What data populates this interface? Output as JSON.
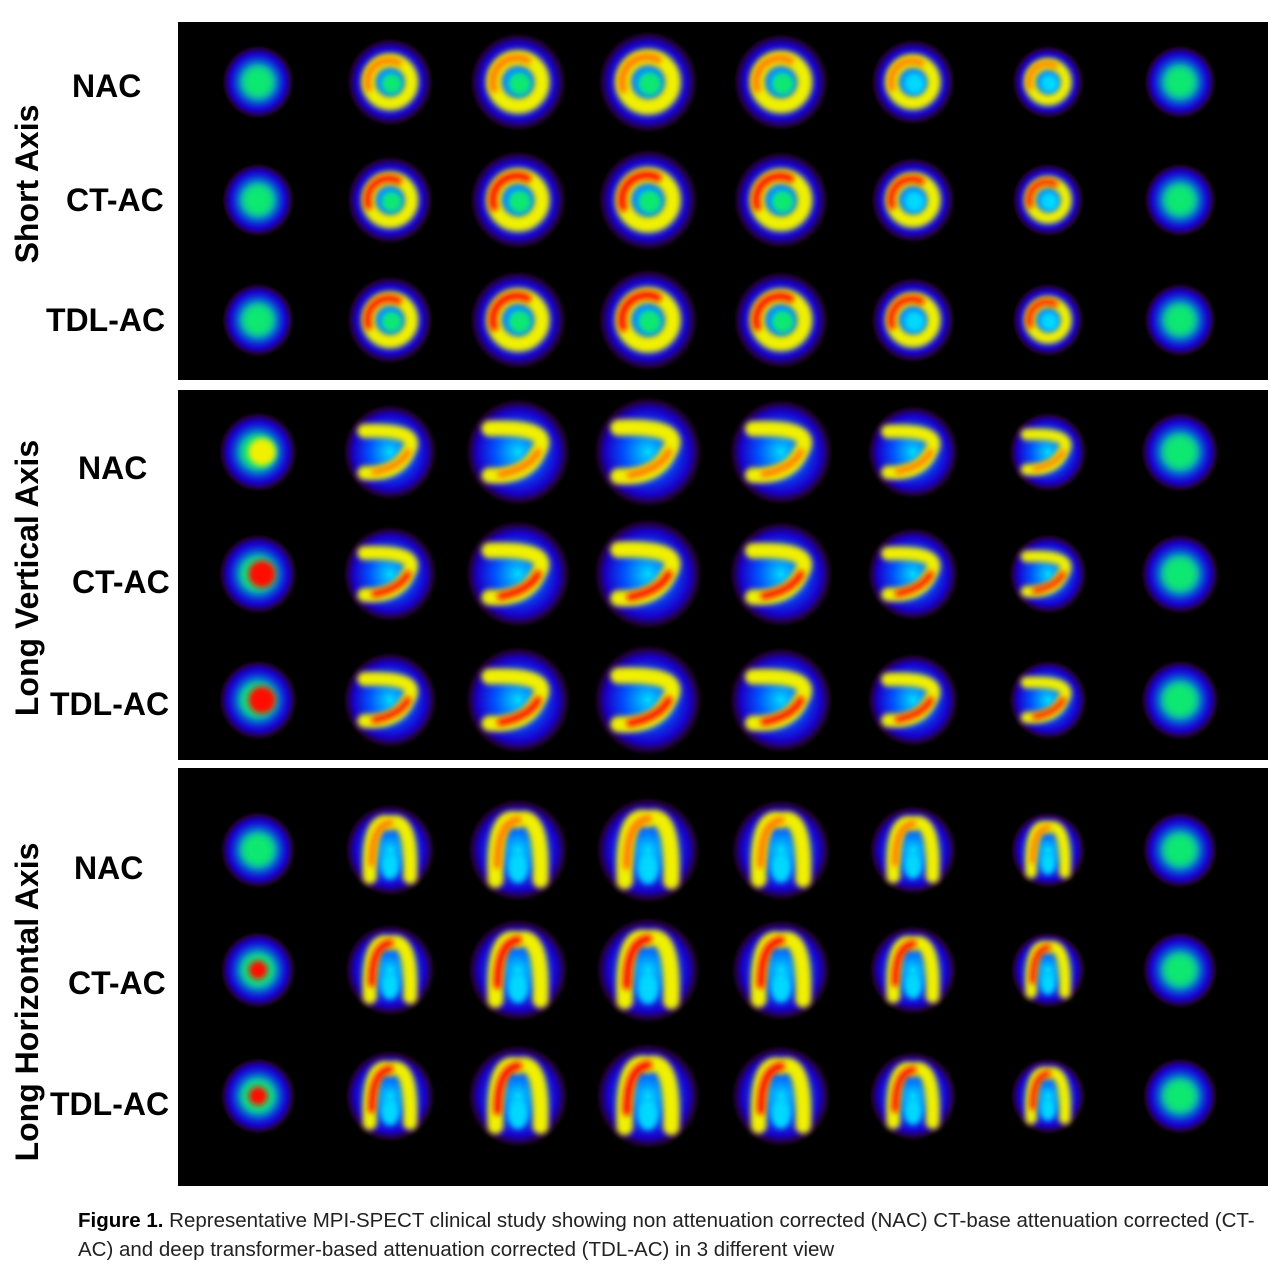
{
  "sections": [
    {
      "title": "Short Axis",
      "rows": [
        "NAC",
        "CT-AC",
        "TDL-AC"
      ],
      "shape": "ring"
    },
    {
      "title": "Long Vertical Axis",
      "rows": [
        "NAC",
        "CT-AC",
        "TDL-AC"
      ],
      "shape": "horseshoe-right"
    },
    {
      "title": "Long Horizontal Axis",
      "rows": [
        "NAC",
        "CT-AC",
        "TDL-AC"
      ],
      "shape": "horseshoe-up"
    }
  ],
  "caption": {
    "label": "Figure 1.",
    "text": "Representative MPI-SPECT clinical study showing non attenuation corrected (NAC) CT-base attenuation corrected  (CT-AC) and deep transformer-based attenuation corrected (TDL-AC) in 3 different view"
  },
  "colormap": [
    "#000000",
    "#20003a",
    "#1a00c8",
    "#0050ff",
    "#00d8ff",
    "#10e870",
    "#60f000",
    "#f0f000",
    "#ff8000",
    "#ff1000"
  ]
}
